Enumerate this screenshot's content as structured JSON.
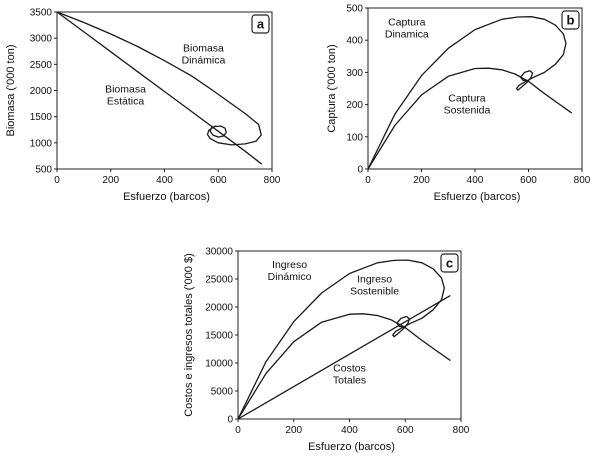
{
  "chart_data": [
    {
      "panel": "a",
      "type": "line",
      "xlabel": "Esfuerzo (barcos)",
      "ylabel": "Biomasa ('000 ton)",
      "xlim": [
        0,
        800
      ],
      "ylim": [
        500,
        3500
      ],
      "xticks": [
        0,
        200,
        400,
        600,
        800
      ],
      "yticks": [
        500,
        1000,
        1500,
        2000,
        2500,
        3000,
        3500
      ],
      "series": [
        {
          "name": "Biomasa Estática",
          "x": [
            0,
            100,
            200,
            300,
            400,
            500,
            600,
            700,
            760
          ],
          "y": [
            3500,
            3120,
            2740,
            2360,
            1980,
            1600,
            1220,
            840,
            600
          ]
        },
        {
          "name": "Biomasa Dinámica",
          "x": [
            0,
            100,
            200,
            300,
            400,
            500,
            580,
            640,
            700,
            750,
            760,
            740,
            700,
            650,
            600,
            570,
            560,
            565,
            585,
            610,
            625,
            630,
            620,
            600,
            580,
            570,
            575,
            590
          ],
          "y": [
            3500,
            3300,
            3080,
            2840,
            2570,
            2280,
            2000,
            1780,
            1560,
            1350,
            1150,
            1030,
            980,
            960,
            1000,
            1080,
            1160,
            1240,
            1310,
            1320,
            1280,
            1200,
            1130,
            1110,
            1150,
            1220,
            1290,
            1320
          ]
        }
      ],
      "annotations": [
        {
          "lines": [
            "Biomasa",
            "Dinámica"
          ],
          "x": 545,
          "y": 2750
        },
        {
          "lines": [
            "Biomasa",
            "Estática"
          ],
          "x": 255,
          "y": 1960
        }
      ]
    },
    {
      "panel": "b",
      "type": "line",
      "xlabel": "Esfuerzo (barcos)",
      "ylabel": "Captura ('000 ton)",
      "xlim": [
        0,
        800
      ],
      "ylim": [
        0,
        500
      ],
      "xticks": [
        0,
        200,
        400,
        600,
        800
      ],
      "yticks": [
        0,
        100,
        200,
        300,
        400,
        500
      ],
      "series": [
        {
          "name": "Captura Dinámica",
          "x": [
            0,
            100,
            200,
            300,
            400,
            500,
            560,
            610,
            660,
            700,
            730,
            740,
            730,
            700,
            660,
            620,
            585,
            565,
            555,
            560,
            575,
            595,
            610,
            615,
            605,
            585,
            570,
            580,
            600
          ],
          "y": [
            0,
            170,
            290,
            375,
            433,
            465,
            472,
            473,
            465,
            447,
            420,
            390,
            355,
            325,
            300,
            285,
            270,
            260,
            250,
            245,
            255,
            270,
            285,
            298,
            305,
            300,
            285,
            275,
            275
          ]
        },
        {
          "name": "Captura Sostenida",
          "x": [
            0,
            100,
            200,
            300,
            400,
            450,
            500,
            550,
            600,
            650,
            700,
            760
          ],
          "y": [
            0,
            135,
            230,
            288,
            312,
            313,
            308,
            295,
            272,
            240,
            210,
            175
          ]
        }
      ],
      "annotations": [
        {
          "lines": [
            "Captura",
            "Dinamica"
          ],
          "x": 145,
          "y": 445
        },
        {
          "lines": [
            "Captura",
            "Sostenida"
          ],
          "x": 370,
          "y": 210
        }
      ]
    },
    {
      "panel": "c",
      "type": "line",
      "xlabel": "Esfuerzo (barcos)",
      "ylabel": "Costos e ingresos totales ('000 $)",
      "xlim": [
        0,
        800
      ],
      "ylim": [
        0,
        30000
      ],
      "xticks": [
        0,
        200,
        400,
        600,
        800
      ],
      "yticks": [
        0,
        5000,
        10000,
        15000,
        20000,
        25000,
        30000
      ],
      "series": [
        {
          "name": "Ingreso Dinámico",
          "x": [
            0,
            100,
            200,
            300,
            400,
            500,
            560,
            610,
            660,
            700,
            730,
            740,
            730,
            700,
            660,
            620,
            585,
            565,
            555,
            560,
            575,
            595,
            610,
            615,
            605,
            585,
            570,
            580,
            600
          ],
          "y": [
            0,
            10200,
            17400,
            22500,
            25980,
            27900,
            28320,
            28380,
            27900,
            26820,
            25200,
            23400,
            21300,
            19500,
            18000,
            17100,
            16200,
            15600,
            15000,
            14700,
            15300,
            16200,
            17100,
            17880,
            18300,
            18000,
            17100,
            16500,
            16500
          ]
        },
        {
          "name": "Ingreso Sostenible",
          "x": [
            0,
            100,
            200,
            300,
            400,
            450,
            500,
            550,
            600,
            650,
            700,
            760
          ],
          "y": [
            0,
            8100,
            13800,
            17280,
            18720,
            18780,
            18480,
            17700,
            16320,
            14400,
            12600,
            10500
          ]
        },
        {
          "name": "Costos Totales",
          "x": [
            0,
            760
          ],
          "y": [
            0,
            22000
          ]
        }
      ],
      "annotations": [
        {
          "lines": [
            "Ingreso",
            "Dinámico"
          ],
          "x": 185,
          "y": 27000
        },
        {
          "lines": [
            "Ingreso",
            "Sostenible"
          ],
          "x": 490,
          "y": 24400
        },
        {
          "lines": [
            "Costos",
            "Totales"
          ],
          "x": 400,
          "y": 8500
        }
      ]
    }
  ]
}
